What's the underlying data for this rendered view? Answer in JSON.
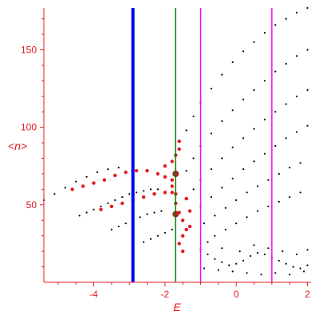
{
  "chart_data": {
    "type": "scatter",
    "title": "",
    "xlabel": "E",
    "ylabel": "<n>",
    "xlim": [
      -5.4,
      2.1
    ],
    "ylim": [
      0,
      177
    ],
    "x_ticks": [
      -4,
      -2,
      0,
      2
    ],
    "x_tick_labels": [
      "-4",
      "-2",
      "0",
      "2"
    ],
    "y_ticks": [
      50,
      100,
      150
    ],
    "y_tick_labels": [
      "50",
      "100",
      "150"
    ],
    "grid": false,
    "legend": "none",
    "colors": {
      "axis": "#e41a1c",
      "black_points": "#000000",
      "red_points": "#e41a1c",
      "dark_red_points": "#b22222"
    },
    "vertical_lines": [
      {
        "x": -2.9,
        "color": "#0000ff",
        "width": "thick"
      },
      {
        "x": -1.7,
        "color": "#008000",
        "width": "thin"
      },
      {
        "x": -1.0,
        "color": "#ff00ff",
        "width": "thin"
      },
      {
        "x": 1.0,
        "color": "#ff00ff",
        "width": "thin"
      }
    ],
    "series": [
      {
        "values": [
          [
            -5.4,
            53
          ],
          [
            -5.1,
            57
          ],
          [
            -4.8,
            61
          ],
          [
            -4.5,
            65
          ],
          [
            -4.2,
            68
          ],
          [
            -3.9,
            71
          ],
          [
            -3.6,
            73
          ],
          [
            -3.3,
            74
          ]
        ]
      },
      {
        "values": [
          [
            -4.4,
            43
          ],
          [
            -4.2,
            45
          ],
          [
            -4.0,
            47
          ],
          [
            -3.8,
            49
          ],
          [
            -3.6,
            51
          ],
          [
            -3.4,
            53
          ],
          [
            -3.2,
            55
          ],
          [
            -3.0,
            57
          ],
          [
            -2.8,
            58
          ],
          [
            -2.6,
            59
          ],
          [
            -2.4,
            60
          ],
          [
            -2.2,
            60
          ]
        ]
      },
      {
        "values": [
          [
            -3.5,
            34
          ],
          [
            -3.3,
            36
          ],
          [
            -3.1,
            38
          ],
          [
            -2.9,
            40
          ],
          [
            -2.7,
            42
          ],
          [
            -2.5,
            44
          ],
          [
            -2.3,
            45
          ],
          [
            -2.1,
            46
          ]
        ]
      },
      {
        "values": [
          [
            -2.6,
            26
          ],
          [
            -2.4,
            28
          ],
          [
            -2.2,
            30
          ],
          [
            -2.0,
            32
          ],
          [
            -1.8,
            34
          ]
        ]
      },
      {
        "values": [
          [
            -1.4,
            98
          ],
          [
            -1.2,
            107
          ],
          [
            -1.0,
            116
          ],
          [
            -0.7,
            125
          ],
          [
            -0.4,
            134
          ],
          [
            -0.1,
            142
          ],
          [
            0.2,
            149
          ],
          [
            0.5,
            155
          ],
          [
            0.8,
            161
          ],
          [
            1.1,
            166
          ],
          [
            1.4,
            170
          ],
          [
            1.7,
            174
          ],
          [
            2.0,
            177
          ]
        ]
      },
      {
        "values": [
          [
            -1.4,
            72
          ],
          [
            -1.2,
            80
          ],
          [
            -1.0,
            88
          ],
          [
            -0.7,
            96
          ],
          [
            -0.4,
            104
          ],
          [
            -0.1,
            111
          ],
          [
            0.2,
            118
          ],
          [
            0.5,
            124
          ],
          [
            0.8,
            130
          ],
          [
            1.1,
            136
          ],
          [
            1.4,
            141
          ],
          [
            1.7,
            146
          ],
          [
            2.0,
            150
          ]
        ]
      },
      {
        "values": [
          [
            -1.2,
            60
          ],
          [
            -1.0,
            66
          ],
          [
            -0.7,
            73
          ],
          [
            -0.4,
            80
          ],
          [
            -0.1,
            87
          ],
          [
            0.2,
            93
          ],
          [
            0.5,
            99
          ],
          [
            0.8,
            105
          ],
          [
            1.1,
            110
          ],
          [
            1.4,
            115
          ],
          [
            1.7,
            120
          ],
          [
            2.0,
            124
          ]
        ]
      },
      {
        "values": [
          [
            -1.0,
            49
          ],
          [
            -0.7,
            55
          ],
          [
            -0.4,
            61
          ],
          [
            -0.1,
            67
          ],
          [
            0.2,
            73
          ],
          [
            0.5,
            78
          ],
          [
            0.8,
            83
          ],
          [
            1.1,
            88
          ],
          [
            1.4,
            93
          ],
          [
            1.7,
            97
          ],
          [
            2.0,
            101
          ]
        ]
      },
      {
        "values": [
          [
            -0.9,
            38
          ],
          [
            -0.6,
            43
          ],
          [
            -0.3,
            48
          ],
          [
            0.0,
            53
          ],
          [
            0.3,
            58
          ],
          [
            0.6,
            62
          ],
          [
            0.9,
            66
          ],
          [
            1.2,
            70
          ],
          [
            1.5,
            74
          ],
          [
            1.8,
            77
          ]
        ]
      },
      {
        "values": [
          [
            -0.6,
            30
          ],
          [
            -0.3,
            34
          ],
          [
            0.0,
            38
          ],
          [
            0.3,
            42
          ],
          [
            0.6,
            46
          ],
          [
            0.9,
            49
          ],
          [
            1.2,
            52
          ],
          [
            1.5,
            55
          ],
          [
            1.8,
            58
          ]
        ]
      },
      {
        "values": [
          [
            -1.0,
            21
          ],
          [
            -0.8,
            18
          ],
          [
            -0.6,
            15
          ],
          [
            -0.4,
            13
          ],
          [
            -0.2,
            11
          ],
          [
            0.0,
            12
          ],
          [
            0.2,
            14
          ],
          [
            0.4,
            17
          ],
          [
            0.6,
            19
          ],
          [
            0.8,
            18
          ],
          [
            1.0,
            16
          ],
          [
            1.2,
            14
          ],
          [
            1.4,
            12
          ],
          [
            1.6,
            10
          ],
          [
            1.8,
            9
          ],
          [
            2.0,
            11
          ],
          [
            -0.9,
            9
          ],
          [
            -0.5,
            8
          ],
          [
            -0.1,
            7
          ],
          [
            0.3,
            6
          ],
          [
            0.7,
            5
          ],
          [
            1.1,
            6
          ],
          [
            1.5,
            5
          ],
          [
            1.9,
            7
          ],
          [
            -0.8,
            26
          ],
          [
            -0.4,
            22
          ],
          [
            0.1,
            20
          ],
          [
            0.5,
            24
          ],
          [
            0.9,
            22
          ],
          [
            1.3,
            20
          ],
          [
            1.7,
            18
          ],
          [
            2.0,
            21
          ]
        ]
      },
      {
        "values": [
          [
            -4.6,
            60
          ],
          [
            -4.3,
            62
          ],
          [
            -4.0,
            64
          ],
          [
            -3.7,
            66
          ],
          [
            -3.4,
            69
          ],
          [
            -3.1,
            71
          ],
          [
            -2.8,
            72
          ],
          [
            -2.5,
            72
          ],
          [
            -2.2,
            70
          ],
          [
            -2.0,
            68
          ],
          [
            -1.8,
            66
          ]
        ]
      },
      {
        "values": [
          [
            -3.8,
            47
          ],
          [
            -3.5,
            49
          ],
          [
            -3.2,
            51
          ],
          [
            -2.9,
            53
          ],
          [
            -2.6,
            55
          ],
          [
            -2.3,
            57
          ],
          [
            -2.0,
            58
          ],
          [
            -1.8,
            58
          ]
        ]
      },
      {
        "values": [
          [
            -2.0,
            75
          ],
          [
            -1.8,
            78
          ],
          [
            -1.7,
            82
          ],
          [
            -1.6,
            86
          ],
          [
            -1.6,
            91
          ],
          [
            -1.7,
            71
          ],
          [
            -1.8,
            62
          ],
          [
            -1.7,
            57
          ],
          [
            -1.7,
            51
          ],
          [
            -1.6,
            45
          ],
          [
            -1.5,
            40
          ],
          [
            -1.4,
            34
          ],
          [
            -1.5,
            30
          ],
          [
            -1.6,
            25
          ],
          [
            -1.5,
            20
          ],
          [
            -1.3,
            36
          ],
          [
            -1.3,
            46
          ],
          [
            -1.4,
            54
          ]
        ]
      },
      {
        "values": [
          [
            -1.7,
            70
          ],
          [
            -1.7,
            44
          ]
        ]
      }
    ]
  }
}
